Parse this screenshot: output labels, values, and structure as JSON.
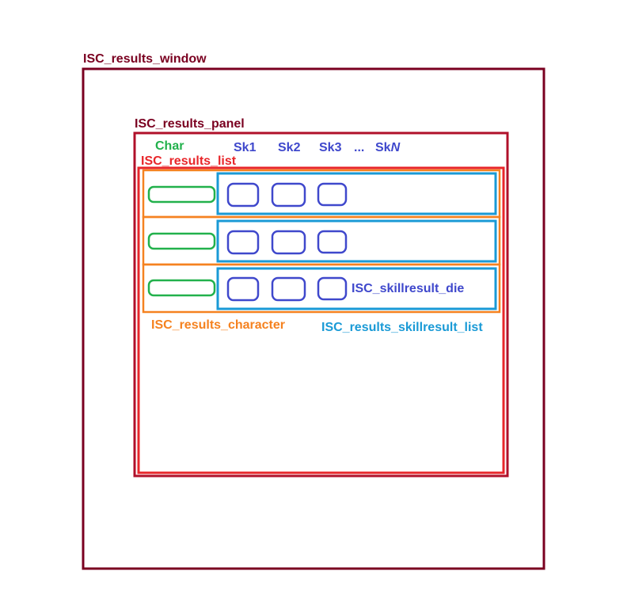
{
  "labels": {
    "window": "ISC_results_window",
    "panel": "ISC_results_panel",
    "list": "ISC_results_list",
    "character": "ISC_results_character",
    "skillresult_list": "ISC_results_skillresult_list",
    "skillresult_die": "ISC_skillresult_die"
  },
  "header": {
    "char": "Char",
    "skills": [
      "Sk1",
      "Sk2",
      "Sk3"
    ],
    "ellipsis": "...",
    "skn_prefix": "Sk",
    "skn_suffix": "N"
  },
  "colors": {
    "window": "#7a0020",
    "panel": "#b0102a",
    "list": "#e8262a",
    "character": "#f58220",
    "skillresult_list": "#1a9ad6",
    "die": "#3f48cc",
    "char_cell": "#22b14c"
  },
  "rows": 3,
  "dice_per_row": 3
}
